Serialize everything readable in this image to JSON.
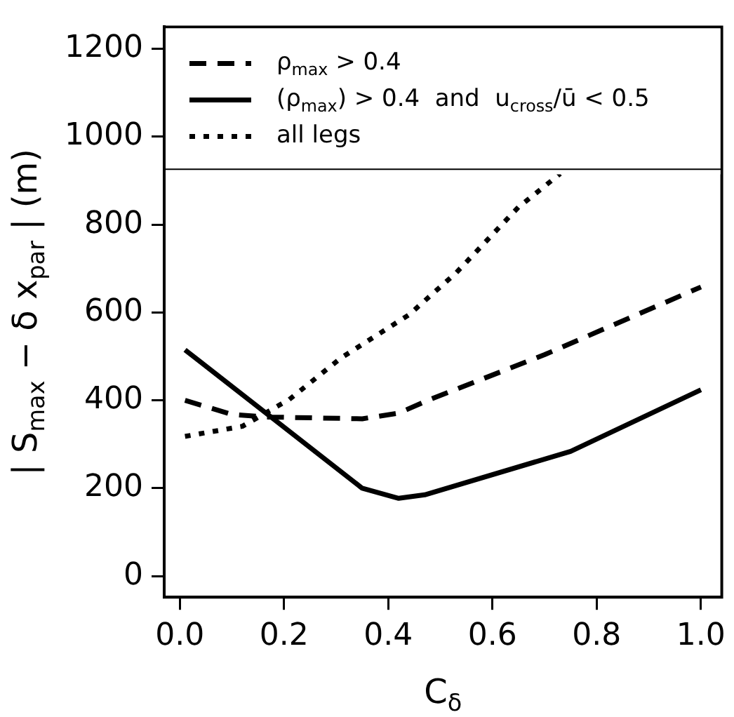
{
  "chart_data": {
    "type": "line",
    "xlabel": "C$_{δ}$",
    "ylabel": "| S$_{max}$ − δ x$_{par}$ | (m)",
    "xlim": [
      -0.03,
      1.04
    ],
    "ylim": [
      -48,
      1250
    ],
    "xticks": [
      {
        "value": 0,
        "label": "0.0"
      },
      0.2,
      0.4,
      0.6,
      0.8,
      {
        "value": 1,
        "label": "1.0"
      }
    ],
    "yticks": [
      0,
      200,
      400,
      600,
      800,
      1000,
      1200
    ],
    "ref_lines": [
      {
        "axis": "y",
        "value": 926,
        "color": "#000000",
        "line_style": "solid"
      }
    ],
    "grid": false,
    "legend": "top",
    "marker": "none",
    "series": [
      {
        "name": "ρ$_{max}$ > 0.4",
        "color": "#000000",
        "line_style": "dashed",
        "x": [
          0.01,
          0.1,
          0.17,
          0.35,
          0.42,
          0.48,
          0.7,
          1.0
        ],
        "values": [
          400,
          368,
          362,
          358,
          371,
          402,
          504,
          658
        ]
      },
      {
        "name": "(ρ$_{max}$) > 0.4  and  u$_{cross}$/ū < 0.5",
        "color": "#000000",
        "line_style": "solid",
        "x": [
          0.01,
          0.35,
          0.42,
          0.47,
          0.75,
          1.0
        ],
        "values": [
          515,
          200,
          177,
          185,
          284,
          424
        ]
      },
      {
        "name": "all legs",
        "color": "#000000",
        "line_style": "dotted",
        "x": [
          0.01,
          0.12,
          0.21,
          0.31,
          0.44,
          0.53,
          0.65,
          0.73
        ],
        "values": [
          318,
          341,
          402,
          497,
          595,
          690,
          840,
          916
        ]
      }
    ]
  }
}
